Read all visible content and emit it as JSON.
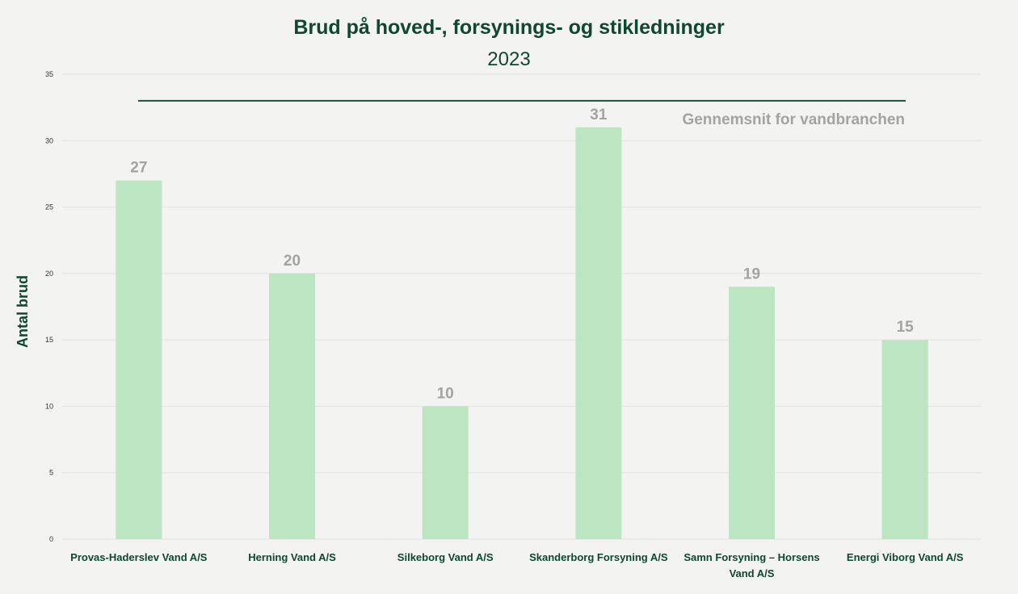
{
  "chart_data": {
    "type": "bar",
    "title": "Brud på hoved-, forsynings- og stikledninger",
    "subtitle": "2023",
    "xlabel": "",
    "ylabel": "Antal brud",
    "ylim": [
      0,
      35
    ],
    "yticks": [
      0,
      5,
      10,
      15,
      20,
      25,
      30,
      35
    ],
    "grid": true,
    "categories": [
      [
        "Provas-Haderslev Vand A/S"
      ],
      [
        "Herning Vand A/S"
      ],
      [
        "Silkeborg Vand A/S"
      ],
      [
        "Skanderborg Forsyning A/S"
      ],
      [
        "Samn Forsyning – Horsens",
        "Vand A/S"
      ],
      [
        "Energi Viborg Vand A/S"
      ]
    ],
    "values": [
      27,
      20,
      10,
      31,
      19,
      15
    ],
    "reference_line": {
      "label": "Gennemsnit for vandbranchen",
      "value": 33
    },
    "colors": {
      "bar": "#bce5c1",
      "reference_line": "#1f4e42",
      "text": "#0f4634"
    }
  }
}
